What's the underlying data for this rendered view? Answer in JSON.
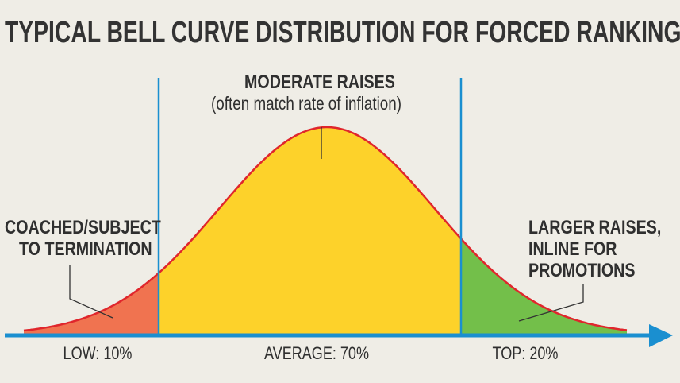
{
  "title": "TYPICAL BELL CURVE DISTRIBUTION FOR FORCED RANKING",
  "annotations": {
    "middle_title": "MODERATE RAISES",
    "middle_sub": "(often match rate of inflation)",
    "left_line1": "COACHED/SUBJECT",
    "left_line2": "TO TERMINATION",
    "right_line1": "LARGER RAISES,",
    "right_line2": "INLINE FOR",
    "right_line3": "PROMOTIONS"
  },
  "segments": [
    {
      "label": "LOW: 10%",
      "share": 10,
      "color": "#f07350"
    },
    {
      "label": "AVERAGE: 70%",
      "share": 70,
      "color": "#fdd22a"
    },
    {
      "label": "TOP: 20%",
      "share": 20,
      "color": "#73bf4a"
    }
  ],
  "colors": {
    "curve": "#e0262c",
    "axis": "#1a8fd0",
    "background": "#efede6"
  },
  "chart_data": {
    "type": "area",
    "shape": "normal distribution",
    "categories": [
      "LOW: 10%",
      "AVERAGE: 70%",
      "TOP: 20%"
    ],
    "values": [
      10,
      70,
      20
    ]
  }
}
